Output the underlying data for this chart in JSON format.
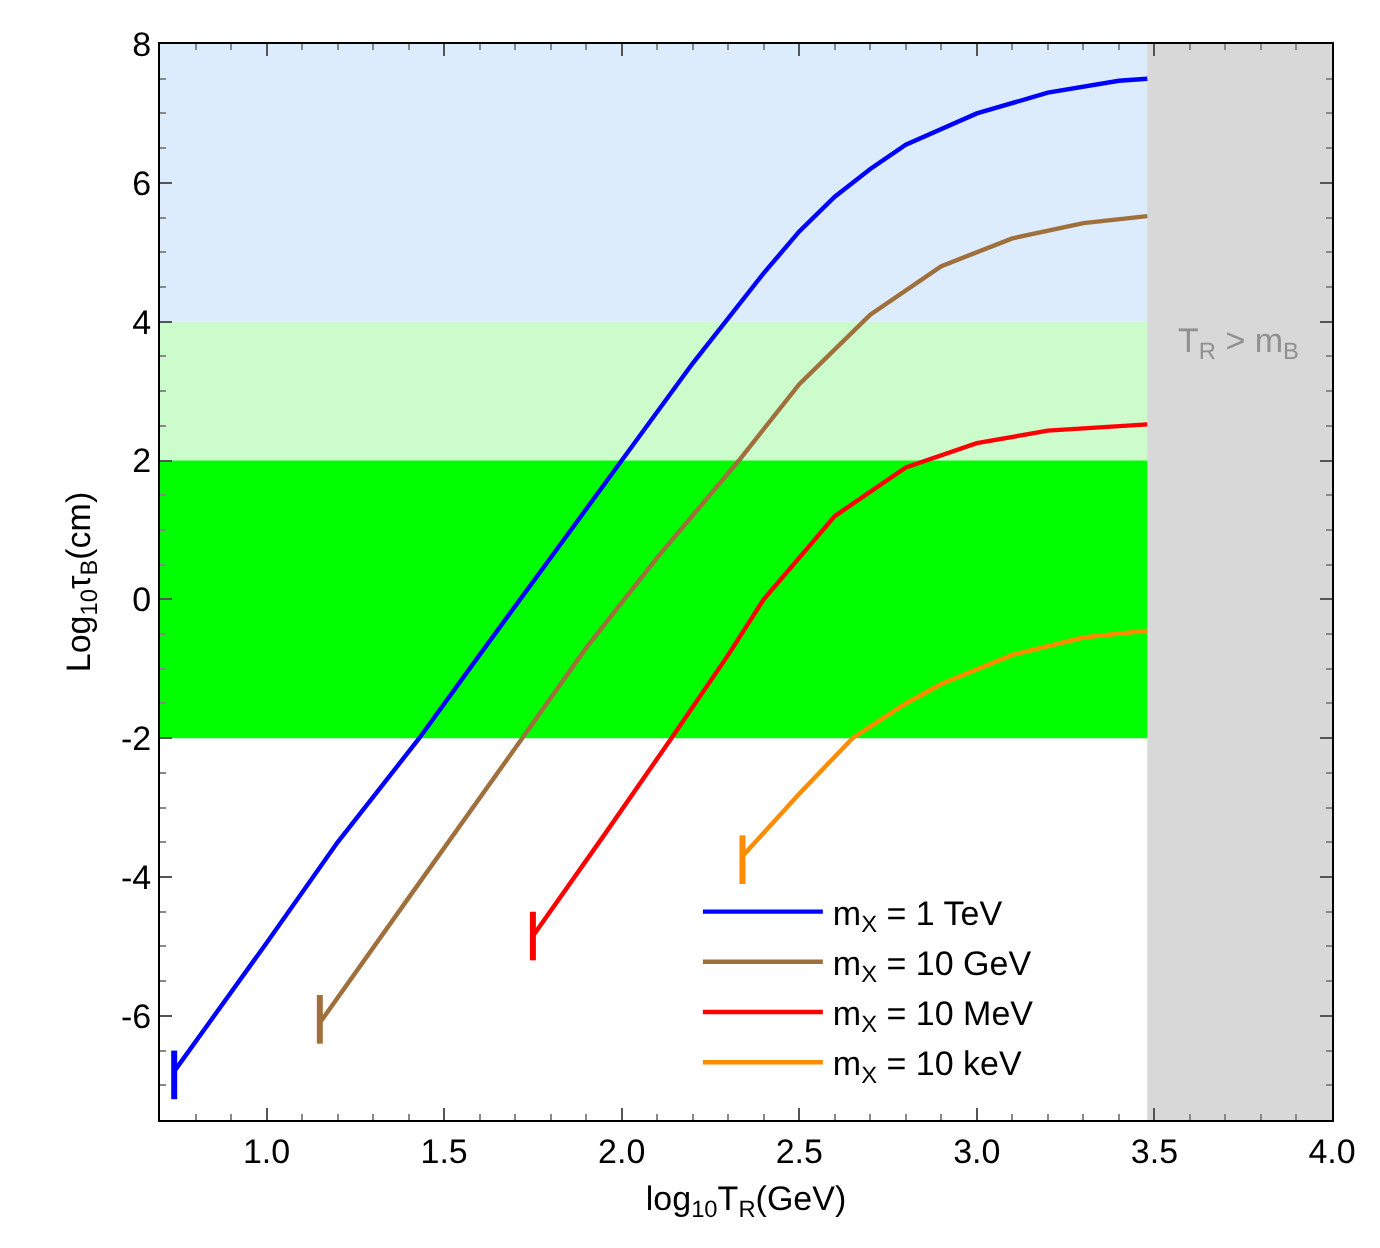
{
  "chart_data": {
    "type": "line",
    "xlabel": "log$_{10}$T$_{R}$(GeV)",
    "ylabel": "Log$_{10}$τ$_{B}$(cm)",
    "xlim": [
      0.7,
      4.0
    ],
    "ylim": [
      -7.5,
      8
    ],
    "xticks": [
      {
        "value": 1,
        "label": "1.0"
      },
      {
        "value": 1.5,
        "label": "1.5"
      },
      {
        "value": 2,
        "label": "2.0"
      },
      {
        "value": 2.5,
        "label": "2.5"
      },
      {
        "value": 3,
        "label": "3.0"
      },
      {
        "value": 3.5,
        "label": "3.5"
      },
      {
        "value": 4,
        "label": "4.0"
      }
    ],
    "yticks": [
      -6,
      -4,
      -2,
      0,
      2,
      4,
      6,
      8
    ],
    "grid": false,
    "legend": "bottom right",
    "marker": "none",
    "line_style": "solid",
    "series": [
      {
        "name": "m$_{X}$ = 1 TeV",
        "color": "#0000ff",
        "x": [
          0.74,
          1.0,
          1.2,
          1.43,
          1.6,
          1.8,
          2.0,
          2.2,
          2.4,
          2.5,
          2.6,
          2.7,
          2.8,
          3.0,
          3.2,
          3.4,
          3.48
        ],
        "values": [
          -6.8,
          -4.95,
          -3.5,
          -2,
          -0.8,
          0.6,
          2,
          3.4,
          4.7,
          5.3,
          5.8,
          6.2,
          6.55,
          7.0,
          7.3,
          7.47,
          7.5
        ],
        "errors": [
          [
            -7.2,
            -6.5
          ],
          null,
          null,
          null,
          null,
          null,
          null,
          null,
          null,
          null,
          null,
          null,
          null,
          null,
          null,
          null,
          null
        ]
      },
      {
        "name": "m$_{X}$ = 10 GeV",
        "color": "#a0703c",
        "x": [
          1.15,
          1.4,
          1.72,
          1.9,
          2.1,
          2.33,
          2.5,
          2.7,
          2.9,
          3.1,
          3.3,
          3.48
        ],
        "values": [
          -6.1,
          -4.3,
          -2,
          -0.7,
          0.6,
          2,
          3.1,
          4.1,
          4.8,
          5.2,
          5.42,
          5.52
        ],
        "errors": [
          [
            -6.4,
            -5.7
          ],
          null,
          null,
          null,
          null,
          null,
          null,
          null,
          null,
          null,
          null,
          null
        ]
      },
      {
        "name": "m$_{X}$ = 10 MeV",
        "color": "#ff0000",
        "x": [
          1.75,
          1.95,
          2.14,
          2.3,
          2.4,
          2.6,
          2.8,
          3.0,
          3.2,
          3.48
        ],
        "values": [
          -4.85,
          -3.4,
          -2,
          -0.8,
          0,
          1.2,
          1.9,
          2.25,
          2.43,
          2.52
        ],
        "errors": [
          [
            -5.2,
            -4.5
          ],
          null,
          null,
          null,
          null,
          null,
          null,
          null,
          null,
          null
        ]
      },
      {
        "name": "m$_{X}$ = 10 keV",
        "color": "#ff8c00",
        "x": [
          2.34,
          2.5,
          2.65,
          2.8,
          2.9,
          3.1,
          3.3,
          3.48
        ],
        "values": [
          -3.7,
          -2.8,
          -2,
          -1.5,
          -1.22,
          -0.8,
          -0.55,
          -0.45
        ],
        "errors": [
          [
            -4.1,
            -3.4
          ],
          null,
          null,
          null,
          null,
          null,
          null,
          null
        ]
      }
    ],
    "bands": [
      {
        "axis": "y",
        "from": 4,
        "to": 8,
        "color": "#dcecfc"
      },
      {
        "axis": "y",
        "from": 2,
        "to": 4,
        "color": "#ccfccc"
      },
      {
        "axis": "y",
        "from": -2,
        "to": 2,
        "color": "#00ff00"
      },
      {
        "axis": "x",
        "from": 3.48,
        "to": 4.0,
        "color": "#d8d8d8",
        "label": "T$_{R}$ > m$_{B}$"
      }
    ]
  }
}
